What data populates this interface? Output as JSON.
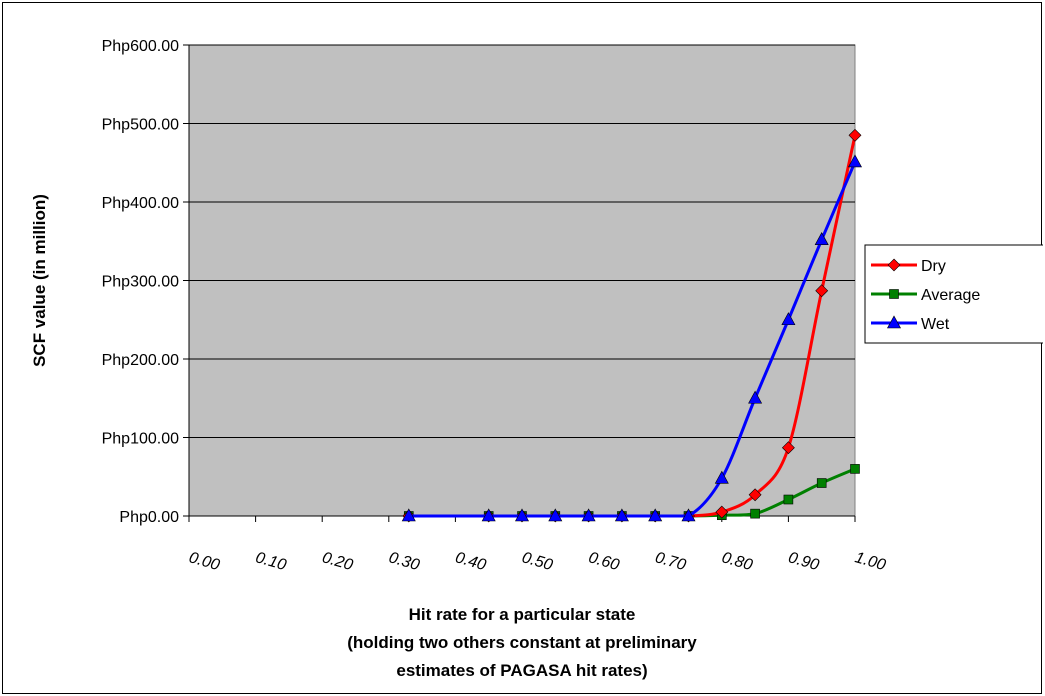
{
  "chart_data": {
    "type": "line",
    "title": "",
    "ylabel": "SCF value (in million)",
    "xlabel_lines": [
      "Hit rate for a particular state",
      "(holding two others constant at preliminary",
      "estimates of PAGASA hit rates)"
    ],
    "x_ticks": [
      0.0,
      0.1,
      0.2,
      0.3,
      0.4,
      0.5,
      0.6,
      0.7,
      0.8,
      0.9,
      1.0
    ],
    "x_tick_labels": [
      "0.00",
      "0.10",
      "0.20",
      "0.30",
      "0.40",
      "0.50",
      "0.60",
      "0.70",
      "0.80",
      "0.90",
      "1.00"
    ],
    "xlim": [
      0,
      1
    ],
    "y_ticks": [
      0,
      100,
      200,
      300,
      400,
      500,
      600
    ],
    "y_tick_labels": [
      "Php0.00",
      "Php100.00",
      "Php200.00",
      "Php300.00",
      "Php400.00",
      "Php500.00",
      "Php600.00"
    ],
    "ylim": [
      0,
      600
    ],
    "grid": "horizontal",
    "legend_position": "right",
    "series": [
      {
        "name": "Dry",
        "color": "#ff0000",
        "marker": "diamond",
        "x": [
          0.33,
          0.45,
          0.5,
          0.55,
          0.6,
          0.65,
          0.7,
          0.75,
          0.8,
          0.85,
          0.9,
          0.95,
          1.0
        ],
        "y": [
          0,
          0,
          0,
          0,
          0,
          0,
          0,
          0,
          5,
          27,
          87,
          287,
          485
        ]
      },
      {
        "name": "Average",
        "color": "#008000",
        "marker": "square",
        "x": [
          0.33,
          0.45,
          0.5,
          0.55,
          0.6,
          0.65,
          0.7,
          0.75,
          0.8,
          0.85,
          0.9,
          0.95,
          1.0
        ],
        "y": [
          0,
          0,
          0,
          0,
          0,
          0,
          0,
          0,
          1,
          3,
          21,
          42,
          60
        ]
      },
      {
        "name": "Wet",
        "color": "#0000ff",
        "marker": "triangle",
        "x": [
          0.33,
          0.45,
          0.5,
          0.55,
          0.6,
          0.65,
          0.7,
          0.75,
          0.8,
          0.85,
          0.9,
          0.95,
          1.0
        ],
        "y": [
          0,
          0,
          0,
          0,
          0,
          0,
          0,
          0,
          48,
          150,
          250,
          352,
          451
        ]
      }
    ]
  }
}
